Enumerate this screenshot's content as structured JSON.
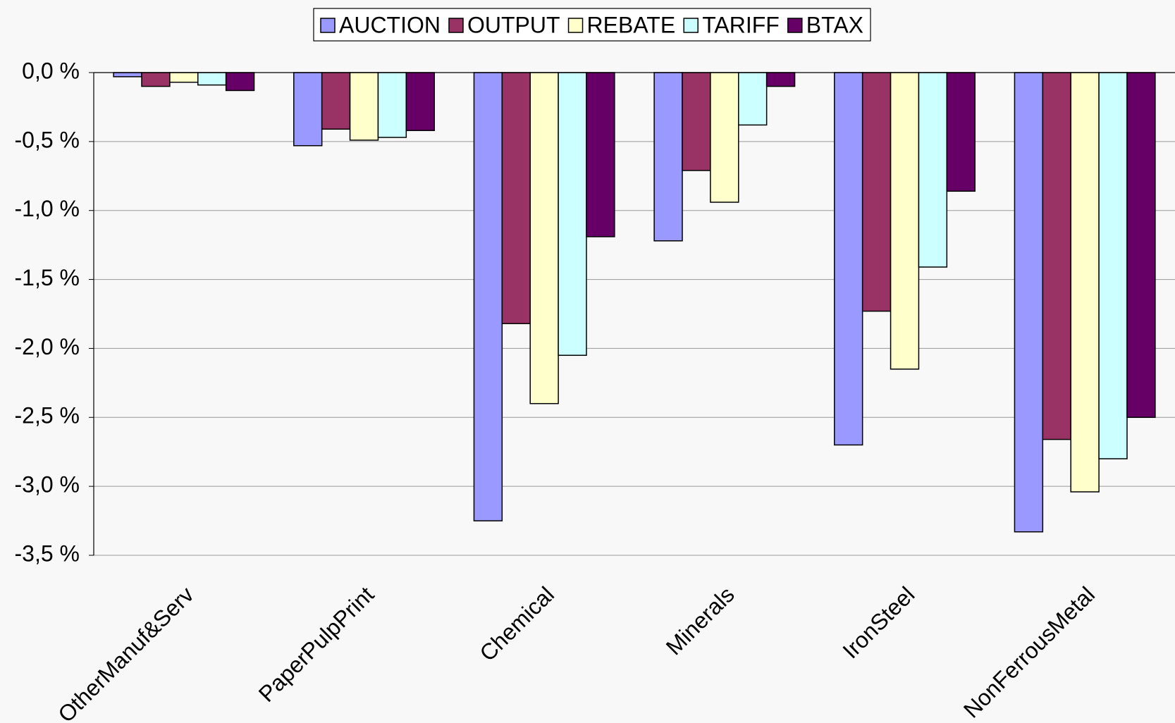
{
  "chart_data": {
    "type": "bar",
    "categories": [
      "OtherManuf&Serv",
      "PaperPulpPrint",
      "Chemical",
      "Minerals",
      "IronSteel",
      "NonFerrousMetal"
    ],
    "series": [
      {
        "name": "AUCTION",
        "color": "#9999ff",
        "values": [
          -0.03,
          -0.53,
          -3.25,
          -1.22,
          -2.7,
          -3.33
        ]
      },
      {
        "name": "OUTPUT",
        "color": "#993366",
        "values": [
          -0.1,
          -0.41,
          -1.82,
          -0.71,
          -1.73,
          -2.66
        ]
      },
      {
        "name": "REBATE",
        "color": "#ffffcc",
        "values": [
          -0.07,
          -0.49,
          -2.4,
          -0.94,
          -2.15,
          -3.04
        ]
      },
      {
        "name": "TARIFF",
        "color": "#ccffff",
        "values": [
          -0.09,
          -0.47,
          -2.05,
          -0.38,
          -1.41,
          -2.8
        ]
      },
      {
        "name": "BTAX",
        "color": "#660066",
        "values": [
          -0.13,
          -0.42,
          -1.19,
          -0.1,
          -0.86,
          -2.5
        ]
      }
    ],
    "ylim": [
      -3.5,
      0
    ],
    "yticks": [
      {
        "value": 0,
        "label": "0,0 %"
      },
      {
        "value": -0.5,
        "label": "-0,5 %"
      },
      {
        "value": -1,
        "label": "-1,0 %"
      },
      {
        "value": -1.5,
        "label": "-1,5 %"
      },
      {
        "value": -2,
        "label": "-2,0 %"
      },
      {
        "value": -2.5,
        "label": "-2,5 %"
      },
      {
        "value": -3,
        "label": "-3,0 %"
      },
      {
        "value": -3.5,
        "label": "-3,5 %"
      }
    ],
    "grid": true,
    "legend": "top"
  }
}
